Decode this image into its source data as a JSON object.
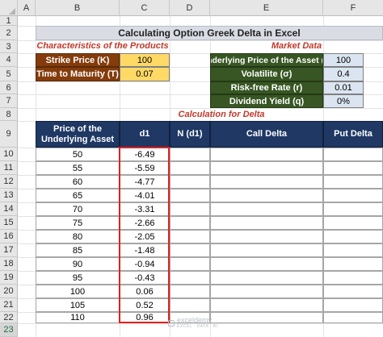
{
  "columns": [
    "A",
    "B",
    "C",
    "D",
    "E",
    "F"
  ],
  "rows": [
    "1",
    "2",
    "3",
    "4",
    "5",
    "6",
    "7",
    "8",
    "9",
    "10",
    "11",
    "12",
    "13",
    "14",
    "15",
    "16",
    "17",
    "18",
    "19",
    "20",
    "21",
    "22",
    "23"
  ],
  "title": "Calculating Option Greek Delta in Excel",
  "products": {
    "heading": "Characteristics of the Products",
    "strike_label": "Strike Price (K)",
    "strike_value": "100",
    "ttm_label": "Time to Maturity (T)",
    "ttm_value": "0.07"
  },
  "market": {
    "heading": "Market Data",
    "items": [
      {
        "label": "Underlying Price of the Asset (S)",
        "value": "100"
      },
      {
        "label": "Volatilite (σ)",
        "value": "0.4"
      },
      {
        "label": "Risk-free Rate (r)",
        "value": "0.01"
      },
      {
        "label": "Dividend Yield (q)",
        "value": "0%"
      }
    ]
  },
  "calc": {
    "heading": "Calculation for Delta",
    "headers": [
      "Price of the Underlying Asset",
      "d1",
      "N (d1)",
      "Call Delta",
      "Put Delta"
    ],
    "rows": [
      {
        "price": "50",
        "d1": "-6.49"
      },
      {
        "price": "55",
        "d1": "-5.59"
      },
      {
        "price": "60",
        "d1": "-4.77"
      },
      {
        "price": "65",
        "d1": "-4.01"
      },
      {
        "price": "70",
        "d1": "-3.31"
      },
      {
        "price": "75",
        "d1": "-2.66"
      },
      {
        "price": "80",
        "d1": "-2.05"
      },
      {
        "price": "85",
        "d1": "-1.48"
      },
      {
        "price": "90",
        "d1": "-0.94"
      },
      {
        "price": "95",
        "d1": "-0.43"
      },
      {
        "price": "100",
        "d1": "0.06"
      },
      {
        "price": "105",
        "d1": "0.52"
      },
      {
        "price": "110",
        "d1": "0.96"
      }
    ]
  },
  "watermark": {
    "brand": "exceldemy",
    "tagline": "EXCEL · DATA · BI"
  },
  "colors": {
    "brown": "#843c0c",
    "yellow": "#ffd966",
    "green": "#375623",
    "lightblue": "#dbe5f1",
    "navy": "#1f3864",
    "accent_red": "#e02020"
  }
}
